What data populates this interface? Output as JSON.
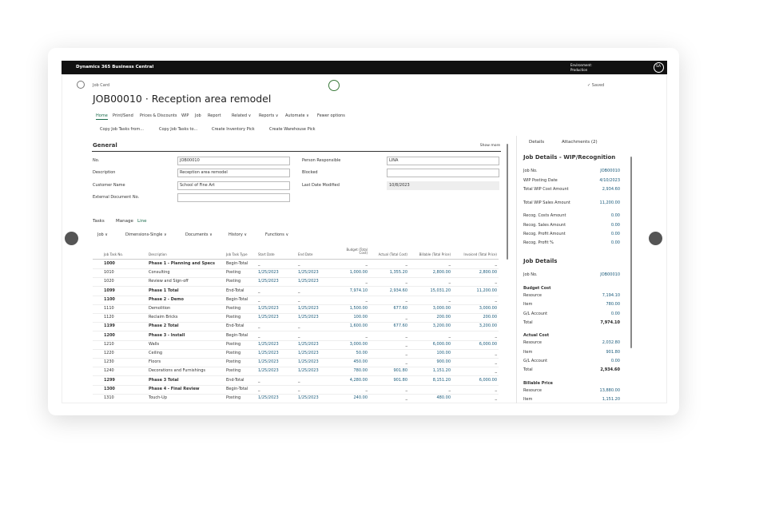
{
  "app": {
    "name": "Dynamics 365 Business Central",
    "environment": "Environment:",
    "environment_name": "Production",
    "user": "SA"
  },
  "page": {
    "caption": "Job Card",
    "title": "JOB00010 · Reception area remodel",
    "saved": "✓ Saved"
  },
  "menu": [
    "Home",
    "Print/Send",
    "Prices & Discounts",
    "WIP",
    "Job",
    "Report",
    "Related ∨",
    "Reports ∨",
    "Automate ∨",
    "Fewer options"
  ],
  "actions": [
    "Copy Job Tasks from...",
    "Copy Job Tasks to...",
    "Create Inventory Pick",
    "Create Warehouse Pick"
  ],
  "general": {
    "title": "General",
    "show_more": "Show more",
    "left_fields": [
      {
        "label": "No.",
        "value": "JOB00010"
      },
      {
        "label": "Description",
        "value": "Reception area remodel"
      },
      {
        "label": "Customer Name",
        "value": "School of Fine Art"
      },
      {
        "label": "External Document No."
      }
    ],
    "right_fields": [
      {
        "label": "Person Responsible",
        "value": "LINA"
      },
      {
        "label": "Blocked"
      },
      {
        "label": "Last Date Modified",
        "value": "10/8/2023"
      }
    ]
  },
  "tasks": {
    "tabs": [
      "Tasks",
      "Manage",
      "Line"
    ],
    "toolbar": [
      "Job ∨",
      "Dimensions-Single ∨",
      "Documents ∨",
      "History ∨",
      "Functions ∨"
    ],
    "columns": [
      "Job Task No.",
      "Description",
      "Job Task Type",
      "Start Date",
      "End Date",
      "Budget (Total Cost)",
      "Actual (Total Cost)",
      "Billable (Total Price)",
      "Invoiced (Total Price)"
    ],
    "rows": [
      [
        "1000",
        "Phase 1 - Planning and Specs",
        "Begin-Total",
        "_",
        "_",
        "_",
        "_",
        "_",
        "_"
      ],
      [
        "1010",
        "Consulting",
        "Posting",
        "1/25/2023",
        "1/25/2023",
        "1,000.00",
        "1,355.20",
        "2,800.00",
        "2,800.00"
      ],
      [
        "1020",
        "Review and Sign-off",
        "Posting",
        "1/25/2023",
        "1/25/2023",
        "_",
        "_",
        "_",
        "_"
      ],
      [
        "1099",
        "Phase 1 Total",
        "End-Total",
        "_",
        "_",
        "7,974.10",
        "2,934.60",
        "15,031.20",
        "11,200.00"
      ],
      [
        "1100",
        "Phase 2 - Demo",
        "Begin-Total",
        "_",
        "_",
        "_",
        "_",
        "_",
        "_"
      ],
      [
        "1110",
        "Demolition",
        "Posting",
        "1/25/2023",
        "1/25/2023",
        "1,500.00",
        "677.60",
        "3,000.00",
        "3,000.00"
      ],
      [
        "1120",
        "Reclaim Bricks",
        "Posting",
        "1/25/2023",
        "1/25/2023",
        "100.00",
        "_",
        "200.00",
        "200.00"
      ],
      [
        "1199",
        "Phase 2 Total",
        "End-Total",
        "_",
        "_",
        "1,600.00",
        "677.60",
        "3,200.00",
        "3,200.00"
      ],
      [
        "1200",
        "Phase 3 - Install",
        "Begin-Total",
        "_",
        "_",
        "_",
        "_",
        "_",
        "_"
      ],
      [
        "1210",
        "Walls",
        "Posting",
        "1/25/2023",
        "1/25/2023",
        "3,000.00",
        "_",
        "6,000.00",
        "6,000.00"
      ],
      [
        "1220",
        "Ceiling",
        "Posting",
        "1/25/2023",
        "1/25/2023",
        "50.00",
        "_",
        "100.00",
        "_"
      ],
      [
        "1230",
        "Floors",
        "Posting",
        "1/25/2023",
        "1/25/2023",
        "450.00",
        "_",
        "900.00",
        "_"
      ],
      [
        "1240",
        "Decorations and Furnishings",
        "Posting",
        "1/25/2023",
        "1/25/2023",
        "780.00",
        "901.80",
        "1,151.20",
        "_"
      ],
      [
        "1299",
        "Phase 3 Total",
        "End-Total",
        "_",
        "_",
        "4,280.00",
        "901.80",
        "8,151.20",
        "6,000.00"
      ],
      [
        "1300",
        "Phase 4 - Final Review",
        "Begin-Total",
        "_",
        "_",
        "_",
        "_",
        "_",
        "_"
      ],
      [
        "1310",
        "Touch-Up",
        "Posting",
        "1/25/2023",
        "1/25/2023",
        "240.00",
        "_",
        "480.00",
        "_"
      ]
    ]
  },
  "factbox": {
    "tabs": [
      "Details",
      "Attachments (2)"
    ],
    "items": [
      {
        "heading": "Job Details - WIP/Recognition"
      },
      {
        "label": "Job No.",
        "value": "JOB00010"
      },
      {
        "label": "WIP Posting Date",
        "value": "4/10/2023"
      },
      {
        "label": "Total WIP Cost Amount",
        "value": "2,934.60"
      },
      {
        "label": "Total WIP Sales Amount",
        "value": "11,200.00"
      },
      {
        "label": "Recog. Costs Amount",
        "value": "0.00"
      },
      {
        "label": "Recog. Sales Amount",
        "value": "0.00"
      },
      {
        "label": "Recog. Profit Amount",
        "value": "0.00"
      },
      {
        "label": "Recog. Profit %",
        "value": "0.00"
      },
      {
        "heading": "Job Details"
      },
      {
        "label": "Job No.",
        "value": "JOB00010"
      },
      {
        "group": "Budget Cost"
      },
      {
        "label": "Resource",
        "value": "7,194.10"
      },
      {
        "label": "Item",
        "value": "780.00"
      },
      {
        "label": "G/L Account",
        "value": "0.00"
      },
      {
        "label": "Total",
        "value": "7,974.10"
      },
      {
        "group": "Actual Cost"
      },
      {
        "label": "Resource",
        "value": "2,032.80"
      },
      {
        "label": "Item",
        "value": "901.80"
      },
      {
        "label": "G/L Account",
        "value": "0.00"
      },
      {
        "label": "Total",
        "value": "2,934.60"
      },
      {
        "group": "Billable Price"
      },
      {
        "label": "Resource",
        "value": "13,880.00"
      },
      {
        "label": "Item",
        "value": "1,151.20"
      }
    ]
  }
}
